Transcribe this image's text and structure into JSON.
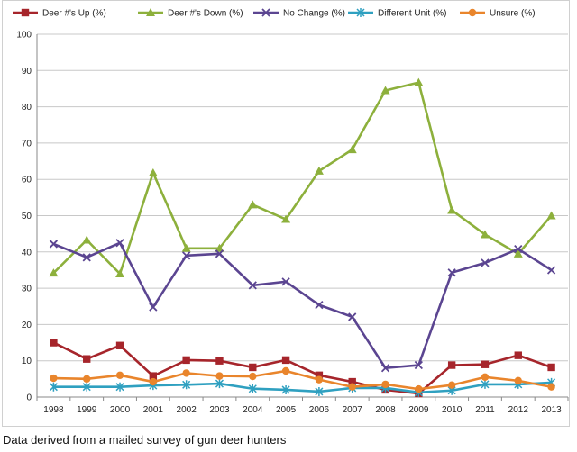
{
  "chart_data": {
    "type": "line",
    "title": "",
    "xlabel": "",
    "ylabel": "",
    "ylim": [
      0,
      100
    ],
    "y_ticks": [
      0,
      10,
      20,
      30,
      40,
      50,
      60,
      70,
      80,
      90,
      100
    ],
    "grid": true,
    "legend_position": "top",
    "categories": [
      "1998",
      "1999",
      "2000",
      "2001",
      "2002",
      "2003",
      "2004",
      "2005",
      "2006",
      "2007",
      "2008",
      "2009",
      "2010",
      "2011",
      "2012",
      "2013"
    ],
    "series": [
      {
        "name": "Deer #'s Up (%)",
        "color": "#a6252b",
        "marker": "square",
        "values": [
          15,
          10.5,
          14.2,
          5.8,
          10.2,
          10,
          8.2,
          10.2,
          6,
          4.2,
          2,
          1,
          8.8,
          9,
          11.5,
          8.2
        ]
      },
      {
        "name": "Deer #'s Down (%)",
        "color": "#8db03c",
        "marker": "triangle",
        "values": [
          34.2,
          43.3,
          34,
          61.8,
          41,
          41,
          53,
          49,
          62.3,
          68.2,
          84.5,
          86.7,
          51.5,
          44.8,
          39.5,
          50
        ]
      },
      {
        "name": "No Change (%)",
        "color": "#5b4591",
        "marker": "x",
        "values": [
          42.2,
          38.5,
          42.5,
          24.8,
          39,
          39.5,
          30.8,
          31.8,
          25.4,
          22.1,
          8,
          8.8,
          34.3,
          37,
          40.8,
          35
        ]
      },
      {
        "name": "Different Unit (%)",
        "color": "#2fa0c0",
        "marker": "star",
        "values": [
          2.8,
          2.8,
          2.8,
          3.2,
          3.4,
          3.7,
          2.3,
          2,
          1.5,
          2.5,
          2.5,
          1.3,
          1.8,
          3.5,
          3.5,
          4
        ]
      },
      {
        "name": "Unsure (%)",
        "color": "#e9852c",
        "marker": "circle",
        "values": [
          5.2,
          5,
          6,
          4.2,
          6.6,
          5.8,
          5.7,
          7.2,
          4.8,
          2.8,
          3.5,
          2.2,
          3.3,
          5.5,
          4.5,
          2.8
        ]
      }
    ]
  },
  "caption": "Data derived from a mailed survey of gun deer hunters"
}
